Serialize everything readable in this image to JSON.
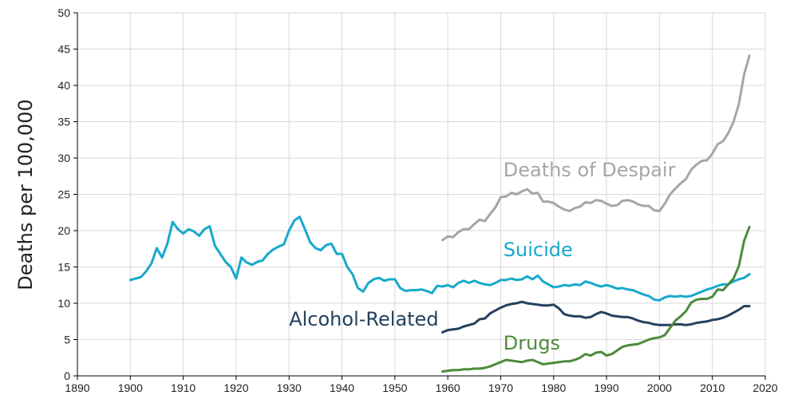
{
  "chart_data": {
    "type": "line",
    "title": "",
    "xlabel": "",
    "ylabel": "Deaths per 100,000",
    "xlim": [
      1890,
      2020
    ],
    "ylim": [
      0,
      50
    ],
    "x_ticks": [
      "1890",
      "1900",
      "1910",
      "1920",
      "1930",
      "1940",
      "1950",
      "1960",
      "1970",
      "1980",
      "1990",
      "2000",
      "2010",
      "2020"
    ],
    "y_ticks": [
      "0",
      "5",
      "10",
      "15",
      "20",
      "25",
      "30",
      "35",
      "40",
      "45",
      "50"
    ],
    "grid": true,
    "legend": "none",
    "series": [
      {
        "name": "Suicide",
        "color": "#17a9cc",
        "points": [
          [
            1900,
            13.2
          ],
          [
            1901,
            13.4
          ],
          [
            1902,
            13.6
          ],
          [
            1903,
            14.4
          ],
          [
            1904,
            15.5
          ],
          [
            1905,
            17.6
          ],
          [
            1906,
            16.3
          ],
          [
            1907,
            18.2
          ],
          [
            1908,
            21.2
          ],
          [
            1909,
            20.2
          ],
          [
            1910,
            19.6
          ],
          [
            1911,
            20.2
          ],
          [
            1912,
            19.9
          ],
          [
            1913,
            19.3
          ],
          [
            1914,
            20.2
          ],
          [
            1915,
            20.6
          ],
          [
            1916,
            17.9
          ],
          [
            1917,
            16.8
          ],
          [
            1918,
            15.7
          ],
          [
            1919,
            15.0
          ],
          [
            1920,
            13.4
          ],
          [
            1921,
            16.3
          ],
          [
            1922,
            15.6
          ],
          [
            1923,
            15.3
          ],
          [
            1924,
            15.7
          ],
          [
            1925,
            15.9
          ],
          [
            1926,
            16.8
          ],
          [
            1927,
            17.4
          ],
          [
            1928,
            17.8
          ],
          [
            1929,
            18.1
          ],
          [
            1930,
            20.0
          ],
          [
            1931,
            21.4
          ],
          [
            1932,
            21.9
          ],
          [
            1933,
            20.2
          ],
          [
            1934,
            18.4
          ],
          [
            1935,
            17.6
          ],
          [
            1936,
            17.3
          ],
          [
            1937,
            18.0
          ],
          [
            1938,
            18.2
          ],
          [
            1939,
            16.8
          ],
          [
            1940,
            16.8
          ],
          [
            1941,
            15.0
          ],
          [
            1942,
            14.0
          ],
          [
            1943,
            12.1
          ],
          [
            1944,
            11.6
          ],
          [
            1945,
            12.8
          ],
          [
            1946,
            13.3
          ],
          [
            1947,
            13.5
          ],
          [
            1948,
            13.1
          ],
          [
            1949,
            13.3
          ],
          [
            1950,
            13.3
          ],
          [
            1951,
            12.1
          ],
          [
            1952,
            11.7
          ],
          [
            1953,
            11.8
          ],
          [
            1954,
            11.8
          ],
          [
            1955,
            11.9
          ],
          [
            1956,
            11.7
          ],
          [
            1957,
            11.4
          ],
          [
            1958,
            12.4
          ],
          [
            1959,
            12.3
          ],
          [
            1960,
            12.5
          ],
          [
            1961,
            12.2
          ],
          [
            1962,
            12.8
          ],
          [
            1963,
            13.1
          ],
          [
            1964,
            12.8
          ],
          [
            1965,
            13.1
          ],
          [
            1966,
            12.8
          ],
          [
            1967,
            12.6
          ],
          [
            1968,
            12.5
          ],
          [
            1969,
            12.8
          ],
          [
            1970,
            13.2
          ],
          [
            1971,
            13.2
          ],
          [
            1972,
            13.4
          ],
          [
            1973,
            13.2
          ],
          [
            1974,
            13.3
          ],
          [
            1975,
            13.7
          ],
          [
            1976,
            13.3
          ],
          [
            1977,
            13.8
          ],
          [
            1978,
            13.0
          ],
          [
            1979,
            12.6
          ],
          [
            1980,
            12.2
          ],
          [
            1981,
            12.3
          ],
          [
            1982,
            12.5
          ],
          [
            1983,
            12.4
          ],
          [
            1984,
            12.6
          ],
          [
            1985,
            12.5
          ],
          [
            1986,
            13.0
          ],
          [
            1987,
            12.8
          ],
          [
            1988,
            12.5
          ],
          [
            1989,
            12.3
          ],
          [
            1990,
            12.5
          ],
          [
            1991,
            12.3
          ],
          [
            1992,
            12.0
          ],
          [
            1993,
            12.1
          ],
          [
            1994,
            11.9
          ],
          [
            1995,
            11.8
          ],
          [
            1996,
            11.5
          ],
          [
            1997,
            11.2
          ],
          [
            1998,
            11.0
          ],
          [
            1999,
            10.5
          ],
          [
            2000,
            10.4
          ],
          [
            2001,
            10.8
          ],
          [
            2002,
            11.0
          ],
          [
            2003,
            10.9
          ],
          [
            2004,
            11.0
          ],
          [
            2005,
            10.9
          ],
          [
            2006,
            11.0
          ],
          [
            2007,
            11.3
          ],
          [
            2008,
            11.6
          ],
          [
            2009,
            11.9
          ],
          [
            2010,
            12.1
          ],
          [
            2011,
            12.4
          ],
          [
            2012,
            12.6
          ],
          [
            2013,
            12.6
          ],
          [
            2014,
            13.0
          ],
          [
            2015,
            13.3
          ],
          [
            2016,
            13.5
          ],
          [
            2017,
            14.0
          ]
        ]
      },
      {
        "name": "Deaths of Despair",
        "color": "#a6a6a6",
        "points": [
          [
            1959,
            18.7
          ],
          [
            1960,
            19.2
          ],
          [
            1961,
            19.1
          ],
          [
            1962,
            19.8
          ],
          [
            1963,
            20.2
          ],
          [
            1964,
            20.2
          ],
          [
            1965,
            20.9
          ],
          [
            1966,
            21.5
          ],
          [
            1967,
            21.3
          ],
          [
            1968,
            22.3
          ],
          [
            1969,
            23.2
          ],
          [
            1970,
            24.6
          ],
          [
            1971,
            24.7
          ],
          [
            1972,
            25.2
          ],
          [
            1973,
            25.0
          ],
          [
            1974,
            25.4
          ],
          [
            1975,
            25.7
          ],
          [
            1976,
            25.1
          ],
          [
            1977,
            25.2
          ],
          [
            1978,
            24.0
          ],
          [
            1979,
            24.0
          ],
          [
            1980,
            23.8
          ],
          [
            1981,
            23.3
          ],
          [
            1982,
            22.9
          ],
          [
            1983,
            22.7
          ],
          [
            1984,
            23.1
          ],
          [
            1985,
            23.3
          ],
          [
            1986,
            23.9
          ],
          [
            1987,
            23.8
          ],
          [
            1988,
            24.2
          ],
          [
            1989,
            24.1
          ],
          [
            1990,
            23.7
          ],
          [
            1991,
            23.4
          ],
          [
            1992,
            23.5
          ],
          [
            1993,
            24.1
          ],
          [
            1994,
            24.2
          ],
          [
            1995,
            24.0
          ],
          [
            1996,
            23.6
          ],
          [
            1997,
            23.4
          ],
          [
            1998,
            23.4
          ],
          [
            1999,
            22.8
          ],
          [
            2000,
            22.7
          ],
          [
            2001,
            23.7
          ],
          [
            2002,
            25.0
          ],
          [
            2003,
            25.8
          ],
          [
            2004,
            26.5
          ],
          [
            2005,
            27.1
          ],
          [
            2006,
            28.4
          ],
          [
            2007,
            29.1
          ],
          [
            2008,
            29.6
          ],
          [
            2009,
            29.7
          ],
          [
            2010,
            30.6
          ],
          [
            2011,
            31.9
          ],
          [
            2012,
            32.3
          ],
          [
            2013,
            33.4
          ],
          [
            2014,
            35.0
          ],
          [
            2015,
            37.4
          ],
          [
            2016,
            41.5
          ],
          [
            2017,
            44.1
          ]
        ]
      },
      {
        "name": "Alcohol-Related",
        "color": "#25405e",
        "points": [
          [
            1959,
            6.0
          ],
          [
            1960,
            6.3
          ],
          [
            1961,
            6.4
          ],
          [
            1962,
            6.5
          ],
          [
            1963,
            6.8
          ],
          [
            1964,
            7.0
          ],
          [
            1965,
            7.2
          ],
          [
            1966,
            7.8
          ],
          [
            1967,
            7.9
          ],
          [
            1968,
            8.6
          ],
          [
            1969,
            9.0
          ],
          [
            1970,
            9.4
          ],
          [
            1971,
            9.7
          ],
          [
            1972,
            9.9
          ],
          [
            1973,
            10.0
          ],
          [
            1974,
            10.2
          ],
          [
            1975,
            10.0
          ],
          [
            1976,
            9.9
          ],
          [
            1977,
            9.8
          ],
          [
            1978,
            9.7
          ],
          [
            1979,
            9.7
          ],
          [
            1980,
            9.8
          ],
          [
            1981,
            9.3
          ],
          [
            1982,
            8.5
          ],
          [
            1983,
            8.3
          ],
          [
            1984,
            8.2
          ],
          [
            1985,
            8.2
          ],
          [
            1986,
            8.0
          ],
          [
            1987,
            8.1
          ],
          [
            1988,
            8.5
          ],
          [
            1989,
            8.8
          ],
          [
            1990,
            8.6
          ],
          [
            1991,
            8.3
          ],
          [
            1992,
            8.2
          ],
          [
            1993,
            8.1
          ],
          [
            1994,
            8.1
          ],
          [
            1995,
            7.9
          ],
          [
            1996,
            7.6
          ],
          [
            1997,
            7.4
          ],
          [
            1998,
            7.3
          ],
          [
            1999,
            7.1
          ],
          [
            2000,
            7.0
          ],
          [
            2001,
            7.0
          ],
          [
            2002,
            7.0
          ],
          [
            2003,
            7.1
          ],
          [
            2004,
            7.1
          ],
          [
            2005,
            7.0
          ],
          [
            2006,
            7.1
          ],
          [
            2007,
            7.3
          ],
          [
            2008,
            7.4
          ],
          [
            2009,
            7.5
          ],
          [
            2010,
            7.7
          ],
          [
            2011,
            7.8
          ],
          [
            2012,
            8.0
          ],
          [
            2013,
            8.3
          ],
          [
            2014,
            8.7
          ],
          [
            2015,
            9.1
          ],
          [
            2016,
            9.6
          ],
          [
            2017,
            9.6
          ]
        ]
      },
      {
        "name": "Drugs",
        "color": "#4d8a3c",
        "points": [
          [
            1959,
            0.6
          ],
          [
            1960,
            0.7
          ],
          [
            1961,
            0.8
          ],
          [
            1962,
            0.8
          ],
          [
            1963,
            0.9
          ],
          [
            1964,
            0.9
          ],
          [
            1965,
            1.0
          ],
          [
            1966,
            1.0
          ],
          [
            1967,
            1.1
          ],
          [
            1968,
            1.3
          ],
          [
            1969,
            1.6
          ],
          [
            1970,
            1.9
          ],
          [
            1971,
            2.2
          ],
          [
            1972,
            2.1
          ],
          [
            1973,
            2.0
          ],
          [
            1974,
            1.9
          ],
          [
            1975,
            2.1
          ],
          [
            1976,
            2.2
          ],
          [
            1977,
            1.9
          ],
          [
            1978,
            1.6
          ],
          [
            1979,
            1.7
          ],
          [
            1980,
            1.8
          ],
          [
            1981,
            1.9
          ],
          [
            1982,
            2.0
          ],
          [
            1983,
            2.0
          ],
          [
            1984,
            2.2
          ],
          [
            1985,
            2.5
          ],
          [
            1986,
            3.0
          ],
          [
            1987,
            2.8
          ],
          [
            1988,
            3.2
          ],
          [
            1989,
            3.3
          ],
          [
            1990,
            2.8
          ],
          [
            1991,
            3.0
          ],
          [
            1992,
            3.5
          ],
          [
            1993,
            4.0
          ],
          [
            1994,
            4.2
          ],
          [
            1995,
            4.3
          ],
          [
            1996,
            4.4
          ],
          [
            1997,
            4.7
          ],
          [
            1998,
            5.0
          ],
          [
            1999,
            5.2
          ],
          [
            2000,
            5.3
          ],
          [
            2001,
            5.6
          ],
          [
            2002,
            6.6
          ],
          [
            2003,
            7.6
          ],
          [
            2004,
            8.2
          ],
          [
            2005,
            8.9
          ],
          [
            2006,
            10.1
          ],
          [
            2007,
            10.5
          ],
          [
            2008,
            10.6
          ],
          [
            2009,
            10.6
          ],
          [
            2010,
            10.9
          ],
          [
            2011,
            11.9
          ],
          [
            2012,
            11.8
          ],
          [
            2013,
            12.6
          ],
          [
            2014,
            13.4
          ],
          [
            2015,
            15.1
          ],
          [
            2016,
            18.6
          ],
          [
            2017,
            20.5
          ]
        ]
      }
    ],
    "annotations": [
      {
        "name": "deaths-of-despair-label",
        "text": "Deaths of Despair",
        "x": 1970.5,
        "y": 27.5,
        "color": "#a6a6a6"
      },
      {
        "name": "suicide-label",
        "text": "Suicide",
        "x": 1970.5,
        "y": 16.5,
        "color": "#17a9cc"
      },
      {
        "name": "alcohol-related-label",
        "text": "Alcohol-Related",
        "x": 1930,
        "y": 6.9,
        "color": "#25405e"
      },
      {
        "name": "drugs-label",
        "text": "Drugs",
        "x": 1970.5,
        "y": 3.6,
        "color": "#4d8a3c"
      }
    ]
  }
}
